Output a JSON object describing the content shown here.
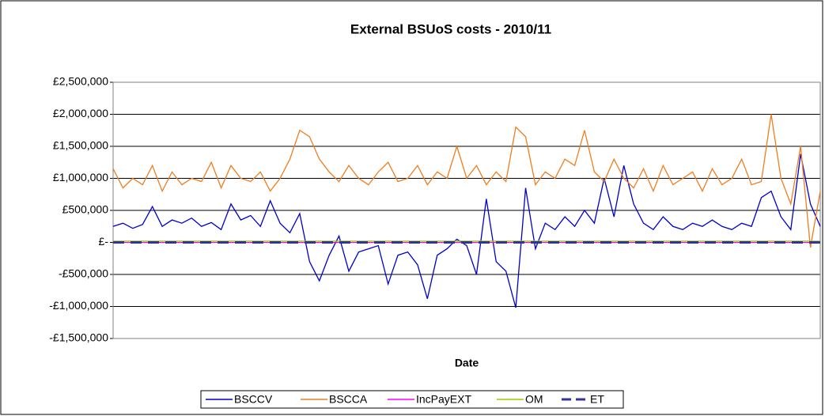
{
  "chart_data": {
    "type": "line",
    "title": "External BSUoS costs - 2010/11",
    "x_label": "Date",
    "ylim": [
      -1500000,
      2500000
    ],
    "yticks": [
      {
        "value": -1500000,
        "label": "-£1,500,000"
      },
      {
        "value": -1000000,
        "label": "-£1,000,000"
      },
      {
        "value": -500000,
        "label": "-£500,000"
      },
      {
        "value": 0,
        "label": "£-"
      },
      {
        "value": 500000,
        "label": "£500,000"
      },
      {
        "value": 1000000,
        "label": "£1,000,000"
      },
      {
        "value": 1500000,
        "label": "£1,500,000"
      },
      {
        "value": 2000000,
        "label": "£2,000,000"
      },
      {
        "value": 2500000,
        "label": "£2,500,000"
      }
    ],
    "grid": true,
    "legend": "bottom",
    "series": [
      {
        "name": "BSCCV",
        "color": "#0000cc",
        "values": [
          250000,
          300000,
          220000,
          280000,
          560000,
          250000,
          350000,
          300000,
          380000,
          250000,
          310000,
          200000,
          600000,
          350000,
          420000,
          250000,
          650000,
          300000,
          150000,
          450000,
          -300000,
          -600000,
          -200000,
          100000,
          -450000,
          -150000,
          -100000,
          -50000,
          -650000,
          -200000,
          -150000,
          -350000,
          -880000,
          -200000,
          -100000,
          50000,
          -50000,
          -500000,
          680000,
          -300000,
          -450000,
          -1020000,
          850000,
          -100000,
          300000,
          200000,
          400000,
          250000,
          500000,
          300000,
          1000000,
          400000,
          1200000,
          600000,
          300000,
          200000,
          400000,
          250000,
          200000,
          300000,
          250000,
          350000,
          250000,
          200000,
          300000,
          250000,
          700000,
          800000,
          400000,
          200000,
          1380000,
          600000,
          250000
        ]
      },
      {
        "name": "BSCCA",
        "color": "#f07d1e",
        "values": [
          1150000,
          850000,
          1000000,
          900000,
          1200000,
          800000,
          1100000,
          900000,
          1000000,
          950000,
          1250000,
          850000,
          1200000,
          1000000,
          950000,
          1100000,
          800000,
          1000000,
          1300000,
          1750000,
          1650000,
          1300000,
          1100000,
          950000,
          1200000,
          1000000,
          900000,
          1100000,
          1250000,
          950000,
          1000000,
          1200000,
          900000,
          1100000,
          1000000,
          1500000,
          1000000,
          1200000,
          900000,
          1100000,
          950000,
          1800000,
          1650000,
          900000,
          1100000,
          1000000,
          1300000,
          1200000,
          1750000,
          1100000,
          950000,
          1300000,
          1000000,
          850000,
          1150000,
          800000,
          1200000,
          900000,
          1000000,
          1100000,
          800000,
          1150000,
          900000,
          1000000,
          1300000,
          900000,
          950000,
          2000000,
          1000000,
          600000,
          1500000,
          -80000,
          800000
        ]
      },
      {
        "name": "IncPayEXT",
        "color": "#ff00ff",
        "values": [
          0,
          0,
          0,
          0,
          0,
          0,
          0,
          0,
          0,
          0,
          0,
          0,
          0,
          0,
          0,
          0,
          0,
          0,
          0,
          0,
          0,
          0,
          0,
          0,
          0,
          0,
          0,
          0,
          0,
          0,
          0,
          0,
          0,
          0,
          0,
          0,
          0,
          0,
          0,
          0,
          0,
          0,
          0,
          0,
          0,
          0,
          0,
          0,
          0,
          0,
          0,
          0,
          0,
          0,
          0,
          0,
          0,
          0,
          0,
          0,
          0,
          0,
          0,
          0,
          0,
          0,
          0,
          0,
          0,
          0,
          0,
          0,
          0
        ]
      },
      {
        "name": "OM",
        "color": "#99cc00",
        "values": [
          20000,
          20000,
          20000,
          20000,
          20000,
          20000,
          20000,
          20000,
          20000,
          20000,
          20000,
          20000,
          20000,
          20000,
          20000,
          20000,
          20000,
          20000,
          20000,
          20000,
          20000,
          20000,
          20000,
          20000,
          20000,
          20000,
          20000,
          20000,
          20000,
          20000,
          20000,
          20000,
          20000,
          20000,
          20000,
          20000,
          20000,
          20000,
          20000,
          20000,
          20000,
          20000,
          20000,
          20000,
          20000,
          20000,
          20000,
          20000,
          20000,
          20000,
          20000,
          20000,
          20000,
          20000,
          20000,
          20000,
          20000,
          20000,
          20000,
          20000,
          20000,
          20000,
          20000,
          20000,
          20000,
          20000,
          20000,
          20000,
          20000,
          20000,
          20000,
          20000,
          20000
        ]
      },
      {
        "name": "ET",
        "color": "#333399",
        "dashed": true,
        "values": [
          0,
          0,
          0,
          0,
          0,
          0,
          0,
          0,
          0,
          0,
          0,
          0,
          0,
          0,
          0,
          0,
          0,
          0,
          0,
          0,
          0,
          0,
          0,
          0,
          0,
          0,
          0,
          0,
          0,
          0,
          0,
          0,
          0,
          0,
          0,
          0,
          0,
          0,
          0,
          0,
          0,
          0,
          0,
          0,
          0,
          0,
          0,
          0,
          0,
          0,
          0,
          0,
          0,
          0,
          0,
          0,
          0,
          0,
          0,
          0,
          0,
          0,
          0,
          0,
          0,
          0,
          0,
          0,
          0,
          0,
          0,
          0,
          0
        ]
      }
    ]
  }
}
